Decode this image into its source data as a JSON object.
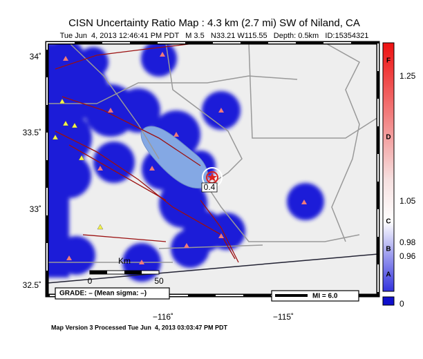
{
  "title": "CISN Uncertainty Ratio Map : 4.3 km (2.7 mi) SW of Niland, CA",
  "subtitle": "Tue Jun  4, 2013 12:46:41 PM PDT   M 3.5   N33.21 W115.55   Depth: 0.5km   ID:15354321",
  "latitude_labels": [
    "34˚",
    "33.5˚",
    "33˚",
    "32.5˚"
  ],
  "longitude_labels": [
    "−116˚",
    "−115˚"
  ],
  "epicenter_label": "0.4",
  "scale": {
    "unit": "Km",
    "start": "0",
    "end": "50"
  },
  "grade": "GRADE: – (Mean sigma: –)",
  "intensity_legend": "MI = 6.0",
  "colorbar": {
    "labels": [
      "F",
      "1.25",
      "D",
      "1.05",
      "C",
      "0.98",
      "B",
      "0.96",
      "A",
      "0"
    ]
  },
  "footer": "Map Version 3 Processed Tue Jun  4, 2013 03:03:47 PM PDT"
}
